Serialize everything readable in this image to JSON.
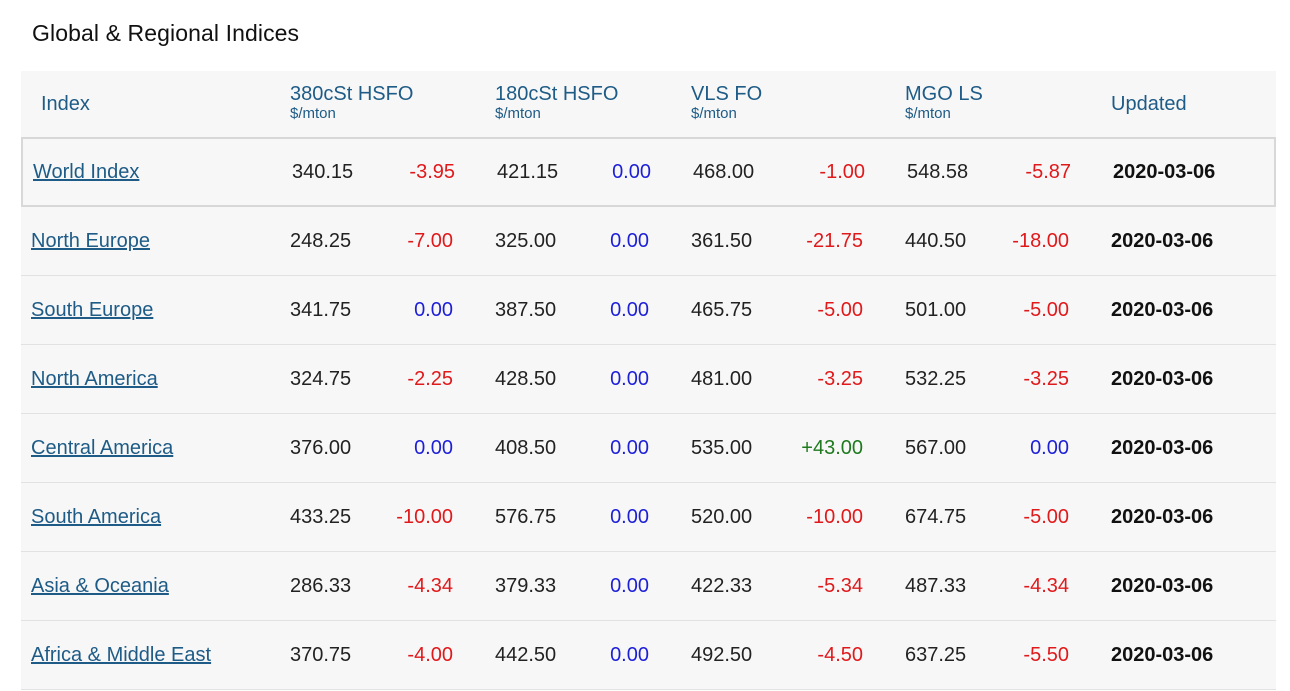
{
  "page": {
    "title": "Global & Regional Indices"
  },
  "header": {
    "index": "Index",
    "h380": {
      "name": "380cSt HSFO",
      "unit": "$/mton"
    },
    "h180": {
      "name": "180cSt HSFO",
      "unit": "$/mton"
    },
    "vls": {
      "name": "VLS FO",
      "unit": "$/mton"
    },
    "mgo": {
      "name": "MGO LS",
      "unit": "$/mton"
    },
    "updated": "Updated"
  },
  "colors": {
    "link": "#1e5b86",
    "negative": "#e0191b",
    "zero": "#1d1fd6",
    "positive": "#1f7a1f"
  },
  "rows": [
    {
      "name": "World Index",
      "h380": "340.15",
      "h380_chg": "-3.95",
      "h180": "421.15",
      "h180_chg": "0.00",
      "vls": "468.00",
      "vls_chg": "-1.00",
      "mgo": "548.58",
      "mgo_chg": "-5.87",
      "updated": "2020-03-06"
    },
    {
      "name": "North Europe",
      "h380": "248.25",
      "h380_chg": "-7.00",
      "h180": "325.00",
      "h180_chg": "0.00",
      "vls": "361.50",
      "vls_chg": "-21.75",
      "mgo": "440.50",
      "mgo_chg": "-18.00",
      "updated": "2020-03-06"
    },
    {
      "name": "South Europe",
      "h380": "341.75",
      "h380_chg": "0.00",
      "h180": "387.50",
      "h180_chg": "0.00",
      "vls": "465.75",
      "vls_chg": "-5.00",
      "mgo": "501.00",
      "mgo_chg": "-5.00",
      "updated": "2020-03-06"
    },
    {
      "name": "North America",
      "h380": "324.75",
      "h380_chg": "-2.25",
      "h180": "428.50",
      "h180_chg": "0.00",
      "vls": "481.00",
      "vls_chg": "-3.25",
      "mgo": "532.25",
      "mgo_chg": "-3.25",
      "updated": "2020-03-06"
    },
    {
      "name": "Central America",
      "h380": "376.00",
      "h380_chg": "0.00",
      "h180": "408.50",
      "h180_chg": "0.00",
      "vls": "535.00",
      "vls_chg": "+43.00",
      "mgo": "567.00",
      "mgo_chg": "0.00",
      "updated": "2020-03-06"
    },
    {
      "name": "South America",
      "h380": "433.25",
      "h380_chg": "-10.00",
      "h180": "576.75",
      "h180_chg": "0.00",
      "vls": "520.00",
      "vls_chg": "-10.00",
      "mgo": "674.75",
      "mgo_chg": "-5.00",
      "updated": "2020-03-06"
    },
    {
      "name": "Asia & Oceania",
      "h380": "286.33",
      "h380_chg": "-4.34",
      "h180": "379.33",
      "h180_chg": "0.00",
      "vls": "422.33",
      "vls_chg": "-5.34",
      "mgo": "487.33",
      "mgo_chg": "-4.34",
      "updated": "2020-03-06"
    },
    {
      "name": "Africa & Middle East",
      "h380": "370.75",
      "h380_chg": "-4.00",
      "h180": "442.50",
      "h180_chg": "0.00",
      "vls": "492.50",
      "vls_chg": "-4.50",
      "mgo": "637.25",
      "mgo_chg": "-5.50",
      "updated": "2020-03-06"
    }
  ]
}
